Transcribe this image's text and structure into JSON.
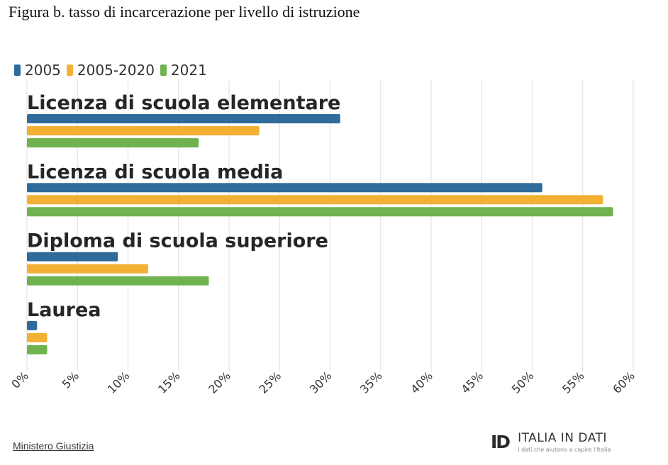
{
  "caption": "Figura b. tasso di incarcerazione per livello di istruzione",
  "colors": {
    "s2005": "#2f6b9a",
    "s2005_2020": "#f2b134",
    "s2021": "#6fb24f",
    "grid": "#e6e6e6",
    "text": "#262626"
  },
  "chart_data": {
    "type": "bar",
    "orientation": "horizontal",
    "title": "",
    "categories": [
      "Licenza di scuola elementare",
      "Licenza di scuola media",
      "Diploma di scuola superiore",
      "Laurea"
    ],
    "series": [
      {
        "name": "2005",
        "color": "#2f6b9a",
        "values": [
          31,
          51,
          9,
          1
        ]
      },
      {
        "name": "2005-2020",
        "color": "#f2b134",
        "values": [
          23,
          57,
          12,
          2
        ]
      },
      {
        "name": "2021",
        "color": "#6fb24f",
        "values": [
          17,
          58,
          18,
          2
        ]
      }
    ],
    "xlim": [
      0,
      60
    ],
    "x_ticks": [
      "0%",
      "5%",
      "10%",
      "15%",
      "20%",
      "25%",
      "30%",
      "35%",
      "40%",
      "45%",
      "50%",
      "55%",
      "60%"
    ],
    "xlabel": "",
    "ylabel": "",
    "grid": true,
    "legend_position": "top-left"
  },
  "source": "Ministero Giustizia",
  "brand": {
    "logo_text": "ID",
    "name": "ITALIA IN DATI",
    "tagline": "I dati che aiutano a capire l'Italia"
  }
}
